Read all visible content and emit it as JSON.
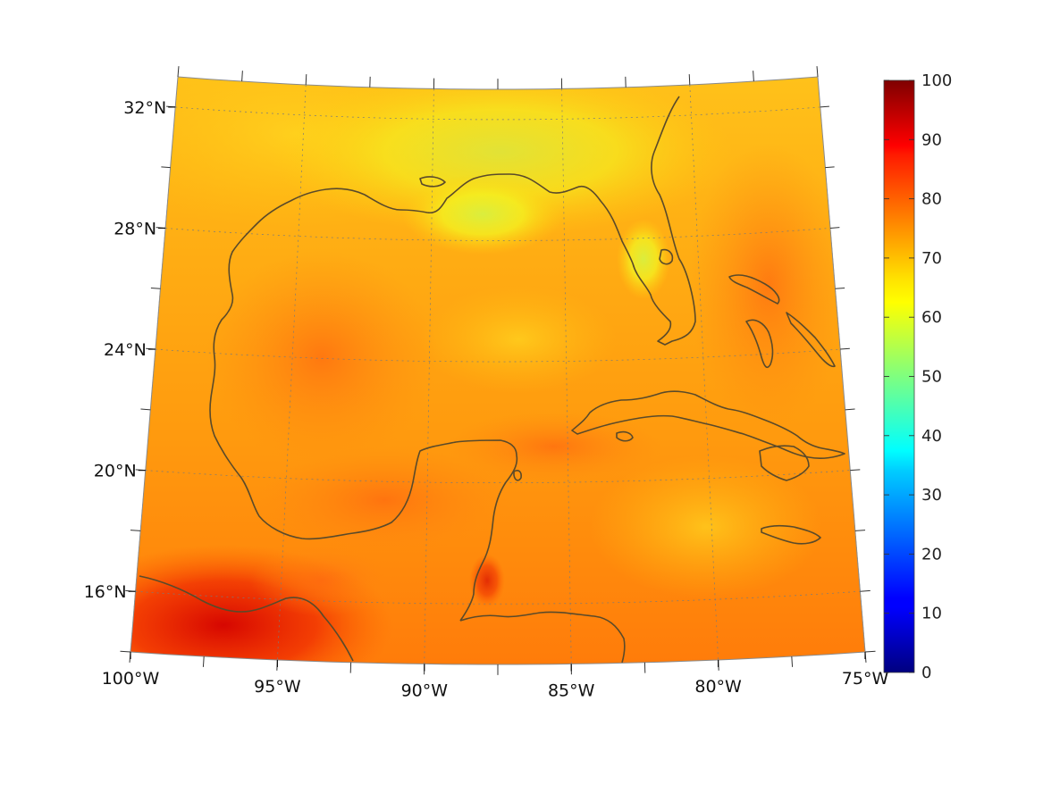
{
  "map": {
    "lat_labels": [
      {
        "lat": 32,
        "label": "32°N"
      },
      {
        "lat": 28,
        "label": "28°N"
      },
      {
        "lat": 24,
        "label": "24°N"
      },
      {
        "lat": 20,
        "label": "20°N"
      },
      {
        "lat": 16,
        "label": "16°N"
      }
    ],
    "lon_labels": [
      {
        "lon": -100,
        "label": "100°W"
      },
      {
        "lon": -95,
        "label": "95°W"
      },
      {
        "lon": -90,
        "label": "90°W"
      },
      {
        "lon": -85,
        "label": "85°W"
      },
      {
        "lon": -80,
        "label": "80°W"
      },
      {
        "lon": -75,
        "label": "75°W"
      }
    ],
    "extent": {
      "lon_min": -100,
      "lon_max": -75,
      "lat_min": 14,
      "lat_max": 33
    },
    "coastline_color": "#5a4a2a",
    "grid_color": "#7a7a7a"
  },
  "colorbar": {
    "min": 0,
    "max": 100,
    "ticks": [
      "0",
      "10",
      "20",
      "30",
      "40",
      "50",
      "60",
      "70",
      "80",
      "90",
      "100"
    ],
    "colormap": "jet"
  }
}
